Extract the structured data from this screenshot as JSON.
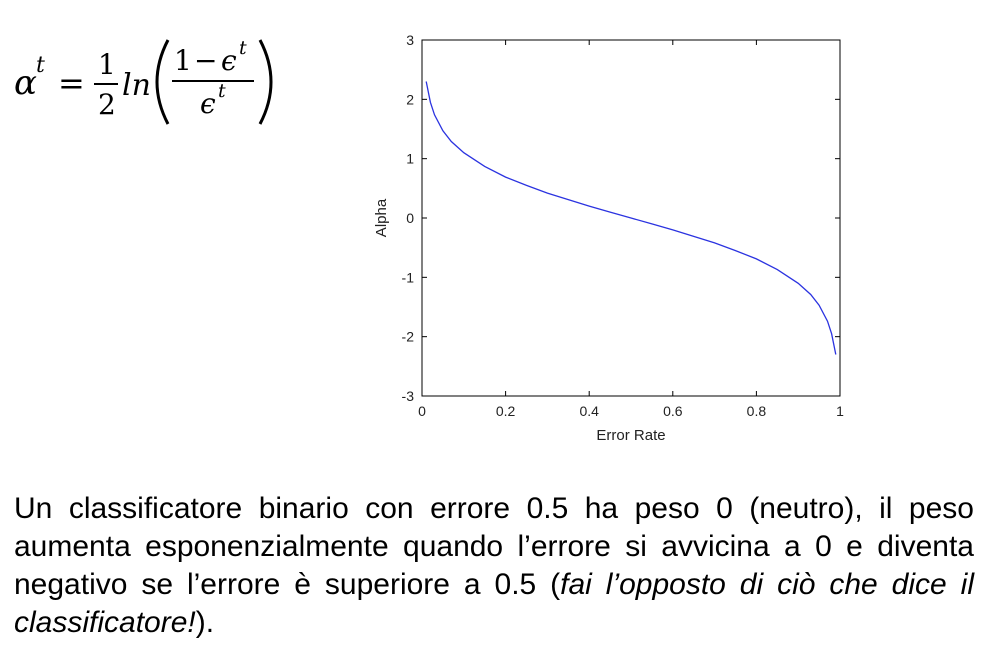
{
  "formula": {
    "alpha": "α",
    "sup_t": "t",
    "equals": "=",
    "half_num": "1",
    "half_den": "2",
    "ln": "ln",
    "frac_num_one": "1",
    "minus": "−",
    "epsilon": "ϵ",
    "colors": {
      "alpha": "#d9382e",
      "text": "#000000"
    }
  },
  "chart_data": {
    "type": "line",
    "xlabel": "Error Rate",
    "ylabel": "Alpha",
    "xlim": [
      0,
      1
    ],
    "ylim": [
      -3,
      3
    ],
    "x_ticks": [
      0,
      0.2,
      0.4,
      0.6,
      0.8,
      1
    ],
    "x_tick_labels": [
      "0",
      "0.2",
      "0.4",
      "0.6",
      "0.8",
      "1"
    ],
    "y_ticks": [
      3,
      2,
      1,
      0,
      -1,
      -2,
      -3
    ],
    "y_tick_labels": [
      "3",
      "2",
      "1",
      "0",
      "-1",
      "-2",
      "-3"
    ],
    "grid": false,
    "series": [
      {
        "color": "#2b33e0",
        "x": [
          0.01,
          0.02,
          0.03,
          0.05,
          0.07,
          0.1,
          0.15,
          0.2,
          0.25,
          0.3,
          0.35,
          0.4,
          0.45,
          0.5,
          0.55,
          0.6,
          0.65,
          0.7,
          0.75,
          0.8,
          0.85,
          0.9,
          0.93,
          0.95,
          0.97,
          0.98,
          0.99
        ],
        "y": [
          2.3,
          1.95,
          1.74,
          1.47,
          1.29,
          1.1,
          0.87,
          0.69,
          0.55,
          0.42,
          0.31,
          0.2,
          0.1,
          0.0,
          -0.1,
          -0.2,
          -0.31,
          -0.42,
          -0.55,
          -0.69,
          -0.87,
          -1.1,
          -1.29,
          -1.47,
          -1.74,
          -1.95,
          -2.3
        ]
      }
    ]
  },
  "caption": {
    "part1": "Un classificatore binario con errore 0.5 ha peso 0 (neutro), il peso aumenta esponenzialmente quando l’errore si avvicina a 0 e diventa negativo se l’errore è superiore a 0.5 (",
    "italic": "fai l’opposto di ciò che dice il classificatore!",
    "part2": ")."
  }
}
